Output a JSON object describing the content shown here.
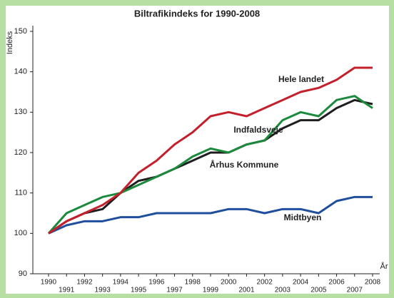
{
  "chart_data": {
    "type": "line",
    "title": "Biltrafikindeks for 1990-2008",
    "y_label": "Indeks",
    "x_label": "År",
    "x": [
      1990,
      1991,
      1992,
      1993,
      1994,
      1995,
      1996,
      1997,
      1998,
      1999,
      2000,
      2001,
      2002,
      2003,
      2004,
      2005,
      2006,
      2007,
      2008
    ],
    "xlim": [
      1990,
      2008
    ],
    "xticks": [
      1990,
      1991,
      1992,
      1993,
      1994,
      1995,
      1996,
      1997,
      1998,
      1999,
      2000,
      2001,
      2002,
      2003,
      2004,
      2005,
      2006,
      2007,
      2008
    ],
    "ylim": [
      90,
      150
    ],
    "yticks": [
      90,
      100,
      110,
      120,
      130,
      140,
      150
    ],
    "series": [
      {
        "name": "Hele landet",
        "color": "#c4202c",
        "values": [
          100,
          103,
          105,
          107,
          110,
          115,
          118,
          122,
          125,
          129,
          130,
          129,
          131,
          133,
          135,
          136,
          138,
          141,
          141
        ]
      },
      {
        "name": "Indfaldsveje",
        "color": "#1c8a3c",
        "values": [
          100,
          105,
          107,
          109,
          110,
          112,
          114,
          116,
          119,
          121,
          120,
          122,
          123,
          128,
          130,
          129,
          133,
          134,
          131
        ]
      },
      {
        "name": "Århus Kommune",
        "color": "#1e1e1e",
        "values": [
          100,
          103,
          105,
          106,
          110,
          113,
          114,
          116,
          118,
          120,
          120,
          122,
          123,
          126,
          128,
          128,
          131,
          133,
          132
        ]
      },
      {
        "name": "Midtbyen",
        "color": "#1f4e9c",
        "values": [
          100,
          102,
          103,
          103,
          104,
          104,
          105,
          105,
          105,
          105,
          106,
          106,
          105,
          106,
          106,
          105,
          108,
          109,
          109
        ]
      }
    ]
  }
}
